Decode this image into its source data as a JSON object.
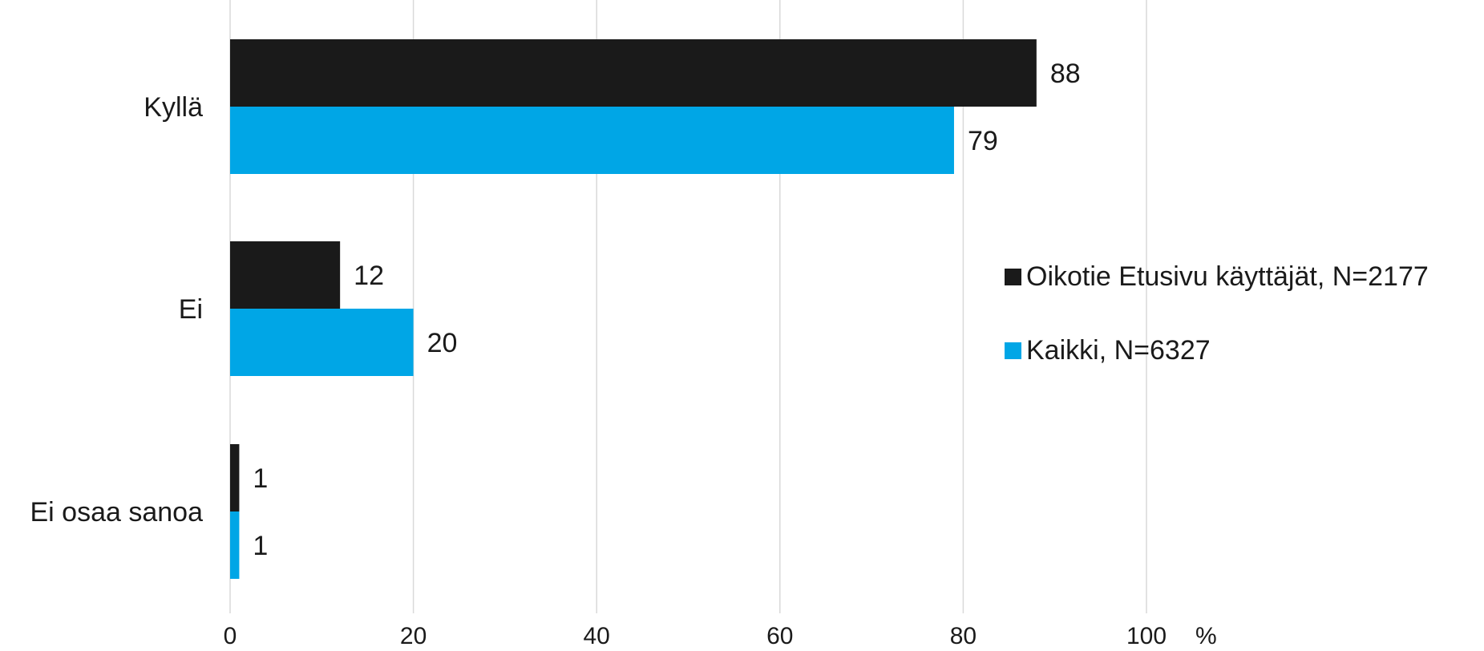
{
  "chart_data": {
    "type": "bar",
    "orientation": "horizontal",
    "categories": [
      "Kyllä",
      "Ei",
      "Ei osaa sanoa"
    ],
    "series": [
      {
        "name": "Oikotie Etusivu käyttäjät, N=2177",
        "color": "#1a1a1a",
        "values": [
          88,
          12,
          1
        ]
      },
      {
        "name": "Kaikki, N=6327",
        "color": "#00a6e6",
        "values": [
          79,
          20,
          1
        ]
      }
    ],
    "x_ticks": [
      "0",
      "20",
      "40",
      "60",
      "80",
      "100"
    ],
    "x_unit": "%",
    "xlim": [
      0,
      100
    ],
    "grid": true,
    "legend_position": "right"
  }
}
